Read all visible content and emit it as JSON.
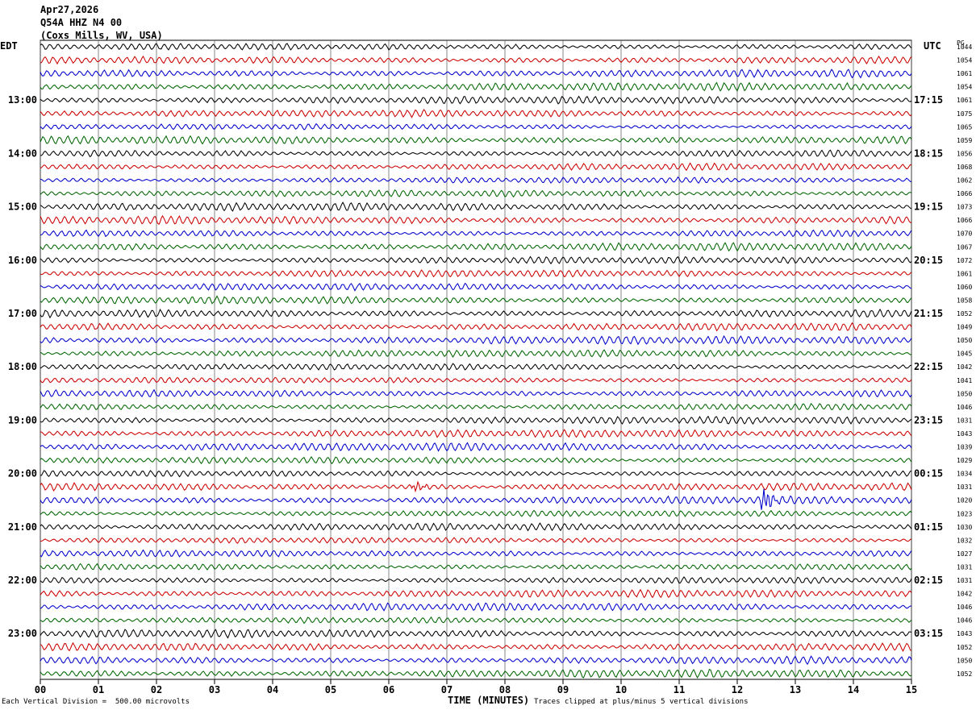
{
  "header": {
    "date": "Apr27,2026",
    "station": "Q54A HHZ N4 00",
    "location": "(Coxs Mills, WV, USA)"
  },
  "left_tz": "EDT",
  "right_tz": "UTC",
  "pg_label": "PG",
  "footer": {
    "scale": "Each Vertical Division =  500.00 microvolts",
    "xlabel": "TIME (MINUTES)",
    "clip": "Traces clipped at plus/minus 5 vertical divisions"
  },
  "colors": {
    "trace_cycle": [
      "#000000",
      "#cc0000",
      "#0000cc",
      "#006600"
    ],
    "grid": "#000000",
    "background": "#ffffff"
  },
  "chart_data": {
    "type": "line",
    "title": "Apr27,2026 Q54A HHZ N4 00 (Coxs Mills, WV, USA)",
    "xlabel": "TIME (MINUTES)",
    "ylabel": "",
    "xlim": [
      0,
      15
    ],
    "x_ticks": [
      "00",
      "01",
      "02",
      "03",
      "04",
      "05",
      "06",
      "07",
      "08",
      "09",
      "10",
      "11",
      "12",
      "13",
      "14",
      "15"
    ],
    "left_hour_labels": [
      "13:00",
      "14:00",
      "15:00",
      "16:00",
      "17:00",
      "18:00",
      "19:00",
      "20:00",
      "21:00",
      "22:00",
      "23:00"
    ],
    "right_hour_labels": [
      "17:15",
      "18:15",
      "19:15",
      "20:15",
      "21:15",
      "22:15",
      "23:15",
      "00:15",
      "01:15",
      "02:15",
      "03:15"
    ],
    "traces_per_hour": 4,
    "minutes_per_trace": 15,
    "row_values": [
      1044,
      1054,
      1061,
      1054,
      1061,
      1075,
      1065,
      1059,
      1056,
      1068,
      1062,
      1066,
      1073,
      1066,
      1070,
      1067,
      1072,
      1061,
      1060,
      1058,
      1052,
      1049,
      1050,
      1045,
      1042,
      1041,
      1050,
      1046,
      1031,
      1043,
      1039,
      1029,
      1034,
      1031,
      1020,
      1023,
      1030,
      1032,
      1027,
      1031,
      1031,
      1042,
      1046,
      1046,
      1043,
      1052,
      1050,
      1052
    ],
    "events": [
      {
        "trace_index": 34,
        "minute": 12.45,
        "amplitude": "large"
      },
      {
        "trace_index": 33,
        "minute": 6.45,
        "amplitude": "medium"
      }
    ],
    "grid": true
  }
}
